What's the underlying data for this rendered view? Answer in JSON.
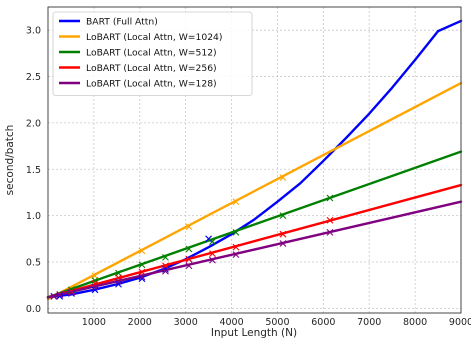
{
  "chart_data": {
    "type": "line",
    "xlabel": "Input Length (N)",
    "ylabel": "second/batch",
    "xlim": [
      0,
      9000
    ],
    "ylim": [
      -0.05,
      3.25
    ],
    "x_ticks": [
      1000,
      2000,
      3000,
      4000,
      5000,
      6000,
      7000,
      8000,
      9000
    ],
    "x_tick_labels": [
      "1000",
      "2000",
      "3000",
      "4000",
      "5000",
      "6000",
      "7000",
      "8000",
      "9000"
    ],
    "y_ticks": [
      0.0,
      0.5,
      1.0,
      1.5,
      2.0,
      2.5,
      3.0
    ],
    "y_tick_labels": [
      "0.0",
      "0.5",
      "1.0",
      "1.5",
      "2.0",
      "2.5",
      "3.0"
    ],
    "grid": true,
    "legend_position": "top-left",
    "series": [
      {
        "name": "BART (Full Attn)",
        "color": "#0000ff",
        "marker": "x",
        "x_fit": [
          0,
          500,
          1000,
          1500,
          2000,
          2500,
          3000,
          3500,
          4000,
          4500,
          5000,
          5500,
          6000,
          6500,
          7000,
          7500,
          8000,
          8500,
          9000
        ],
        "y_fit": [
          0.12,
          0.15,
          0.2,
          0.26,
          0.33,
          0.42,
          0.53,
          0.66,
          0.8,
          0.96,
          1.15,
          1.35,
          1.59,
          1.84,
          2.1,
          2.38,
          2.68,
          2.99,
          3.1
        ],
        "x_points": [
          128,
          256,
          512,
          1024,
          1536,
          2048,
          2560,
          3072,
          3500
        ],
        "y_points": [
          0.13,
          0.13,
          0.16,
          0.2,
          0.26,
          0.32,
          0.42,
          0.53,
          0.75
        ]
      },
      {
        "name": "LoBART (Local Attn, W=1024)",
        "color": "#ffa500",
        "marker": "x",
        "x_fit": [
          0,
          9000
        ],
        "y_fit": [
          0.1,
          2.43
        ],
        "x_points": [
          1024,
          2048,
          3072,
          4096,
          5120
        ],
        "y_points": [
          0.35,
          0.62,
          0.88,
          1.15,
          1.41
        ]
      },
      {
        "name": "LoBART (Local Attn, W=512)",
        "color": "#008000",
        "marker": "x",
        "x_fit": [
          0,
          9000
        ],
        "y_fit": [
          0.12,
          1.69
        ],
        "x_points": [
          512,
          1024,
          1536,
          2048,
          2560,
          3072,
          3584,
          4096,
          5120,
          6144
        ],
        "y_points": [
          0.2,
          0.3,
          0.38,
          0.47,
          0.55,
          0.64,
          0.72,
          0.82,
          1.0,
          1.19
        ]
      },
      {
        "name": "LoBART (Local Attn, W=256)",
        "color": "#ff0000",
        "marker": "x",
        "x_fit": [
          0,
          9000
        ],
        "y_fit": [
          0.12,
          1.33
        ],
        "x_points": [
          256,
          512,
          1024,
          1536,
          2048,
          2560,
          3072,
          3584,
          4096,
          5120,
          6144
        ],
        "y_points": [
          0.15,
          0.18,
          0.27,
          0.33,
          0.39,
          0.46,
          0.53,
          0.59,
          0.66,
          0.8,
          0.95
        ]
      },
      {
        "name": "LoBART (Local Attn, W=128)",
        "color": "#800080",
        "marker": "x",
        "x_fit": [
          0,
          9000
        ],
        "y_fit": [
          0.12,
          1.15
        ],
        "x_points": [
          128,
          256,
          512,
          1024,
          1536,
          2048,
          2560,
          3072,
          3584,
          4096,
          5120,
          6144
        ],
        "y_points": [
          0.13,
          0.15,
          0.17,
          0.23,
          0.29,
          0.34,
          0.4,
          0.46,
          0.52,
          0.58,
          0.7,
          0.82
        ]
      }
    ]
  }
}
